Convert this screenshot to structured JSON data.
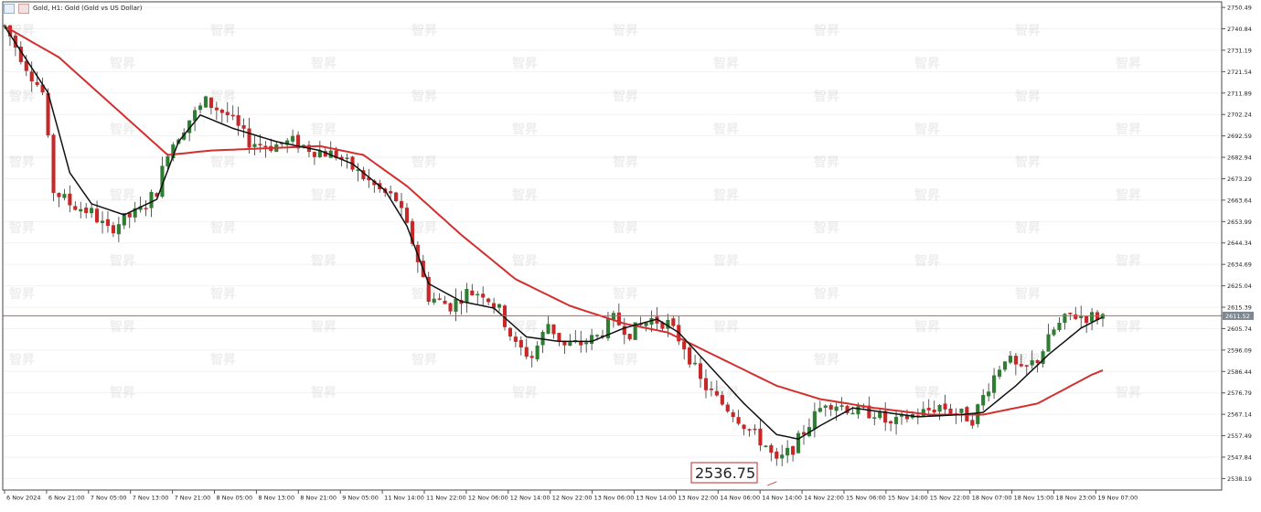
{
  "header": {
    "symbol_label": "Gold, H1:  Gold (Gold vs US Dollar)"
  },
  "watermark": {
    "text": "智昇"
  },
  "colors": {
    "bull": "#2e7d32",
    "bear": "#c62828",
    "ma_fast": "#111111",
    "ma_slow": "#d32f2f",
    "price_line": "#d9534f",
    "grid": "#f2f2f2",
    "axis": "#555555"
  },
  "chart_data": {
    "type": "candlestick",
    "title": "Gold, H1:  Gold (Gold vs US Dollar)",
    "ylim": [
      2533,
      2753
    ],
    "y_ticks": [
      2750.49,
      2740.84,
      2731.19,
      2721.54,
      2711.89,
      2702.24,
      2692.59,
      2682.94,
      2673.29,
      2663.64,
      2653.99,
      2644.34,
      2634.69,
      2625.04,
      2615.39,
      2605.74,
      2596.09,
      2586.44,
      2576.79,
      2567.14,
      2557.49,
      2547.84,
      2538.19
    ],
    "x_ticks": [
      "6 Nov 2024",
      "6 Nov 21:00",
      "7 Nov 05:00",
      "7 Nov 13:00",
      "7 Nov 21:00",
      "8 Nov 05:00",
      "8 Nov 13:00",
      "8 Nov 21:00",
      "9 Nov 05:00",
      "11 Nov 14:00",
      "11 Nov 22:00",
      "12 Nov 06:00",
      "12 Nov 14:00",
      "12 Nov 22:00",
      "13 Nov 06:00",
      "13 Nov 14:00",
      "13 Nov 22:00",
      "14 Nov 06:00",
      "14 Nov 14:00",
      "14 Nov 22:00",
      "15 Nov 06:00",
      "15 Nov 14:00",
      "15 Nov 22:00",
      "18 Nov 07:00",
      "18 Nov 15:00",
      "18 Nov 23:00",
      "19 Nov 07:00"
    ],
    "current_price": 2611.52,
    "low_annotation": 2536.75,
    "anchors": [
      [
        0,
        2742
      ],
      [
        4,
        2724
      ],
      [
        7,
        2712
      ],
      [
        9,
        2668
      ],
      [
        12,
        2662
      ],
      [
        16,
        2658
      ],
      [
        19,
        2650
      ],
      [
        22,
        2655
      ],
      [
        25,
        2659
      ],
      [
        28,
        2668
      ],
      [
        30,
        2686
      ],
      [
        34,
        2700
      ],
      [
        37,
        2708
      ],
      [
        41,
        2702
      ],
      [
        45,
        2690
      ],
      [
        49,
        2688
      ],
      [
        53,
        2690
      ],
      [
        57,
        2686
      ],
      [
        61,
        2684
      ],
      [
        65,
        2676
      ],
      [
        69,
        2668
      ],
      [
        72,
        2664
      ],
      [
        75,
        2645
      ],
      [
        78,
        2620
      ],
      [
        82,
        2616
      ],
      [
        85,
        2622
      ],
      [
        88,
        2622
      ],
      [
        91,
        2614
      ],
      [
        94,
        2598
      ],
      [
        97,
        2593
      ],
      [
        100,
        2608
      ],
      [
        103,
        2598
      ],
      [
        106,
        2599
      ],
      [
        109,
        2602
      ],
      [
        112,
        2610
      ],
      [
        115,
        2604
      ],
      [
        119,
        2610
      ],
      [
        122,
        2608
      ],
      [
        125,
        2598
      ],
      [
        128,
        2582
      ],
      [
        131,
        2574
      ],
      [
        134,
        2568
      ],
      [
        137,
        2560
      ],
      [
        140,
        2553
      ],
      [
        142,
        2545
      ],
      [
        145,
        2552
      ],
      [
        148,
        2563
      ],
      [
        151,
        2573
      ],
      [
        154,
        2571
      ],
      [
        157,
        2568
      ],
      [
        160,
        2568
      ],
      [
        163,
        2562
      ],
      [
        166,
        2566
      ],
      [
        169,
        2568
      ],
      [
        172,
        2571
      ],
      [
        175,
        2568
      ],
      [
        178,
        2565
      ],
      [
        181,
        2580
      ],
      [
        184,
        2593
      ],
      [
        187,
        2586
      ],
      [
        190,
        2592
      ],
      [
        193,
        2605
      ],
      [
        196,
        2612
      ],
      [
        199,
        2611
      ],
      [
        202,
        2611.52
      ]
    ],
    "ma_fast": [
      [
        0,
        2742
      ],
      [
        8,
        2712
      ],
      [
        12,
        2676
      ],
      [
        16,
        2662
      ],
      [
        22,
        2657
      ],
      [
        28,
        2664
      ],
      [
        32,
        2690
      ],
      [
        36,
        2702
      ],
      [
        42,
        2696
      ],
      [
        50,
        2690
      ],
      [
        58,
        2686
      ],
      [
        64,
        2680
      ],
      [
        70,
        2668
      ],
      [
        74,
        2652
      ],
      [
        78,
        2626
      ],
      [
        84,
        2618
      ],
      [
        90,
        2615
      ],
      [
        96,
        2602
      ],
      [
        102,
        2600
      ],
      [
        108,
        2600
      ],
      [
        114,
        2606
      ],
      [
        120,
        2610
      ],
      [
        124,
        2604
      ],
      [
        130,
        2588
      ],
      [
        136,
        2572
      ],
      [
        142,
        2558
      ],
      [
        146,
        2556
      ],
      [
        150,
        2562
      ],
      [
        156,
        2570
      ],
      [
        162,
        2568
      ],
      [
        168,
        2566
      ],
      [
        176,
        2567
      ],
      [
        180,
        2568
      ],
      [
        186,
        2580
      ],
      [
        192,
        2594
      ],
      [
        198,
        2606
      ],
      [
        202,
        2611
      ]
    ],
    "ma_slow": [
      [
        0,
        2742
      ],
      [
        10,
        2728
      ],
      [
        20,
        2706
      ],
      [
        30,
        2684
      ],
      [
        38,
        2686
      ],
      [
        48,
        2687
      ],
      [
        58,
        2688
      ],
      [
        66,
        2684
      ],
      [
        74,
        2670
      ],
      [
        84,
        2648
      ],
      [
        94,
        2628
      ],
      [
        104,
        2616
      ],
      [
        114,
        2608
      ],
      [
        122,
        2604
      ],
      [
        132,
        2592
      ],
      [
        142,
        2580
      ],
      [
        150,
        2574
      ],
      [
        160,
        2570
      ],
      [
        170,
        2567
      ],
      [
        180,
        2567
      ],
      [
        190,
        2572
      ],
      [
        200,
        2585
      ],
      [
        202,
        2587
      ]
    ]
  }
}
